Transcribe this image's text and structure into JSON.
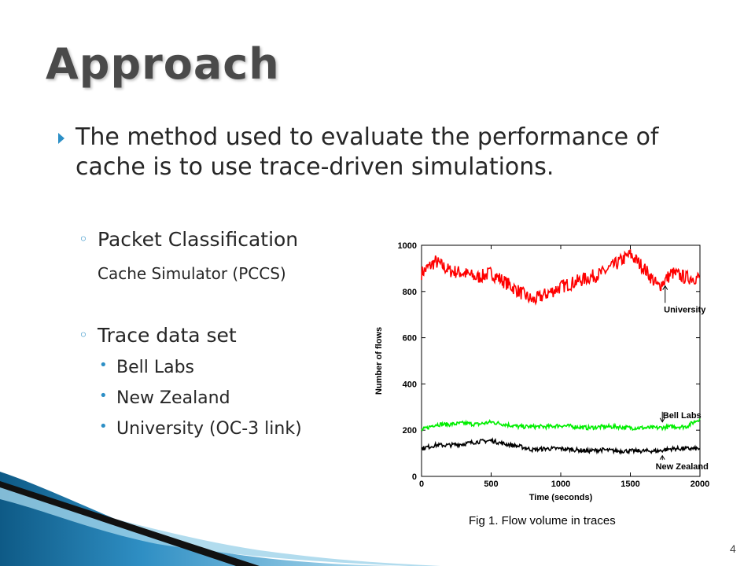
{
  "slide": {
    "title": "Approach",
    "bullet": "The method used to evaluate the performance of cache is to use trace-driven simulations.",
    "sub1_line1": "Packet Classification",
    "sub1_line2": "Cache Simulator (PCCS)",
    "sub2": "Trace data set",
    "items": [
      "Bell Labs",
      "New Zealand",
      "University (OC-3 link)"
    ],
    "caption": "Fig 1. Flow volume in traces",
    "page_number": "4",
    "accent_color": "#2c8fc6"
  },
  "chart_data": {
    "type": "line",
    "title": "",
    "xlabel": "Time (seconds)",
    "ylabel": "Number of flows",
    "xlim": [
      0,
      2000
    ],
    "ylim": [
      0,
      1000
    ],
    "xticks": [
      0,
      500,
      1000,
      1500,
      2000
    ],
    "yticks": [
      0,
      200,
      400,
      600,
      800,
      1000
    ],
    "x": [
      0,
      100,
      200,
      300,
      400,
      500,
      600,
      700,
      800,
      900,
      1000,
      1100,
      1200,
      1300,
      1400,
      1500,
      1600,
      1700,
      1800,
      1900,
      2000
    ],
    "series": [
      {
        "name": "University",
        "color": "#ff0000",
        "values": [
          880,
          930,
          890,
          880,
          860,
          880,
          840,
          800,
          760,
          790,
          820,
          840,
          860,
          880,
          920,
          960,
          900,
          820,
          880,
          860,
          860
        ]
      },
      {
        "name": "Bell Labs",
        "color": "#00ee00",
        "values": [
          200,
          225,
          225,
          230,
          225,
          235,
          225,
          215,
          215,
          215,
          220,
          215,
          210,
          215,
          215,
          210,
          210,
          210,
          215,
          215,
          250
        ]
      },
      {
        "name": "New Zealand",
        "color": "#000000",
        "values": [
          120,
          135,
          135,
          140,
          150,
          155,
          140,
          130,
          115,
          120,
          120,
          115,
          110,
          115,
          110,
          110,
          110,
          110,
          120,
          120,
          120
        ]
      }
    ],
    "annotations": [
      {
        "label": "University",
        "x": 1750,
        "y": 845,
        "text_y": 710
      },
      {
        "label": "Bell Labs",
        "x": 1730,
        "y": 215,
        "text_y": 300
      },
      {
        "label": "New Zealand",
        "x": 1730,
        "y": 110,
        "text_y": 30
      }
    ]
  }
}
